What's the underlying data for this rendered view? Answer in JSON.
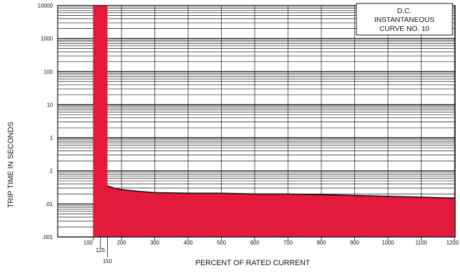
{
  "chart_data": {
    "type": "area",
    "title": "",
    "xlabel": "PERCENT OF RATED CURRENT",
    "ylabel": "TRIP TIME IN SECONDS",
    "xlim": [
      0,
      1200
    ],
    "ylim": [
      0.001,
      10000
    ],
    "y_scale": "log",
    "grid": true,
    "x_ticks": [
      {
        "value": 100,
        "label": "100"
      },
      {
        "value": 125,
        "label": "125"
      },
      {
        "value": 150,
        "label": "150"
      },
      {
        "value": 200,
        "label": "200"
      },
      {
        "value": 300,
        "label": "300"
      },
      {
        "value": 400,
        "label": "400"
      },
      {
        "value": 500,
        "label": "500"
      },
      {
        "value": 600,
        "label": "600"
      },
      {
        "value": 700,
        "label": "700"
      },
      {
        "value": 800,
        "label": "800"
      },
      {
        "value": 900,
        "label": "900"
      },
      {
        "value": 1000,
        "label": "1000"
      },
      {
        "value": 1100,
        "label": "1100"
      },
      {
        "value": 1200,
        "label": "1200"
      }
    ],
    "y_ticks": [
      {
        "value": 10000,
        "label": "10000"
      },
      {
        "value": 1000,
        "label": "1000"
      },
      {
        "value": 100,
        "label": "100"
      },
      {
        "value": 10,
        "label": "10"
      },
      {
        "value": 1,
        "label": "1"
      },
      {
        "value": 0.1,
        "label": ".1"
      },
      {
        "value": 0.01,
        "label": ".01"
      },
      {
        "value": 0.001,
        "label": ".001"
      }
    ],
    "fill_color": "#e31a3c",
    "series": [
      {
        "points": [
          {
            "x": 100,
            "y": 10000
          },
          {
            "x": 150,
            "y": 10000
          },
          {
            "x": 150,
            "y": 0.035
          },
          {
            "x": 175,
            "y": 0.03
          },
          {
            "x": 200,
            "y": 0.027
          },
          {
            "x": 250,
            "y": 0.024
          },
          {
            "x": 300,
            "y": 0.022
          },
          {
            "x": 400,
            "y": 0.021
          },
          {
            "x": 500,
            "y": 0.021
          },
          {
            "x": 600,
            "y": 0.02
          },
          {
            "x": 700,
            "y": 0.02
          },
          {
            "x": 800,
            "y": 0.019
          },
          {
            "x": 900,
            "y": 0.018
          },
          {
            "x": 1000,
            "y": 0.017
          },
          {
            "x": 1100,
            "y": 0.016
          },
          {
            "x": 1200,
            "y": 0.015
          }
        ]
      }
    ],
    "annotation": [
      "D.C.",
      "INSTANTANEOUS",
      "CURVE NO. 10"
    ]
  }
}
